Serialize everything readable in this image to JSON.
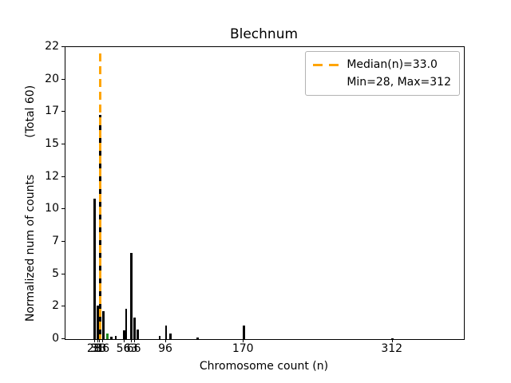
{
  "chart_data": {
    "type": "bar",
    "title": "Blechnum",
    "xlabel": "Chromosome count (n)",
    "ylabel": "Normalized num of counts",
    "ylabel_note": "(Total 60)",
    "xlim": [
      0,
      380
    ],
    "ylim": [
      0,
      22
    ],
    "grid": false,
    "xticks": [
      28,
      31,
      33,
      36,
      56,
      63,
      66,
      96,
      170,
      312
    ],
    "yticks": [
      0,
      2,
      5,
      7,
      10,
      12,
      15,
      17,
      20,
      22
    ],
    "yticks_evenly_spaced": true,
    "bar_color": "#000000",
    "highlight_color": "#228B22",
    "bars": [
      {
        "n": 28,
        "value": 10.6,
        "color": "#000000"
      },
      {
        "n": 31,
        "value": 2.5,
        "color": "#000000"
      },
      {
        "n": 33,
        "value": 16.9,
        "color": "#000000"
      },
      {
        "n": 36,
        "value": 2.1,
        "color": "#000000"
      },
      {
        "n": 40,
        "value": 0.45,
        "color": "#228B22"
      },
      {
        "n": 44,
        "value": 0.2,
        "color": "#000000"
      },
      {
        "n": 48,
        "value": 0.25,
        "color": "#000000"
      },
      {
        "n": 56,
        "value": 0.65,
        "color": "#000000"
      },
      {
        "n": 58,
        "value": 2.3,
        "color": "#000000"
      },
      {
        "n": 63,
        "value": 6.5,
        "color": "#000000"
      },
      {
        "n": 66,
        "value": 1.6,
        "color": "#000000"
      },
      {
        "n": 69,
        "value": 0.7,
        "color": "#000000"
      },
      {
        "n": 90,
        "value": 0.25,
        "color": "#000000"
      },
      {
        "n": 96,
        "value": 1.05,
        "color": "#000000"
      },
      {
        "n": 100,
        "value": 0.4,
        "color": "#000000"
      },
      {
        "n": 126,
        "value": 0.15,
        "color": "#000000"
      },
      {
        "n": 170,
        "value": 1.05,
        "color": "#000000"
      },
      {
        "n": 312,
        "value": 0.05,
        "color": "#000000"
      }
    ],
    "median_line": {
      "n": 33,
      "color": "#FFA500",
      "style": "dashed",
      "top_value": 21.5
    },
    "legend": {
      "position": "upper right",
      "entries": [
        {
          "sample": "dashed-line",
          "color": "#FFA500",
          "label": "Median(n)=33.0"
        },
        {
          "sample": "none",
          "color": null,
          "label": "Min=28, Max=312"
        }
      ]
    },
    "stats": {
      "median": 33.0,
      "min": 28,
      "max": 312,
      "total": 60
    }
  }
}
